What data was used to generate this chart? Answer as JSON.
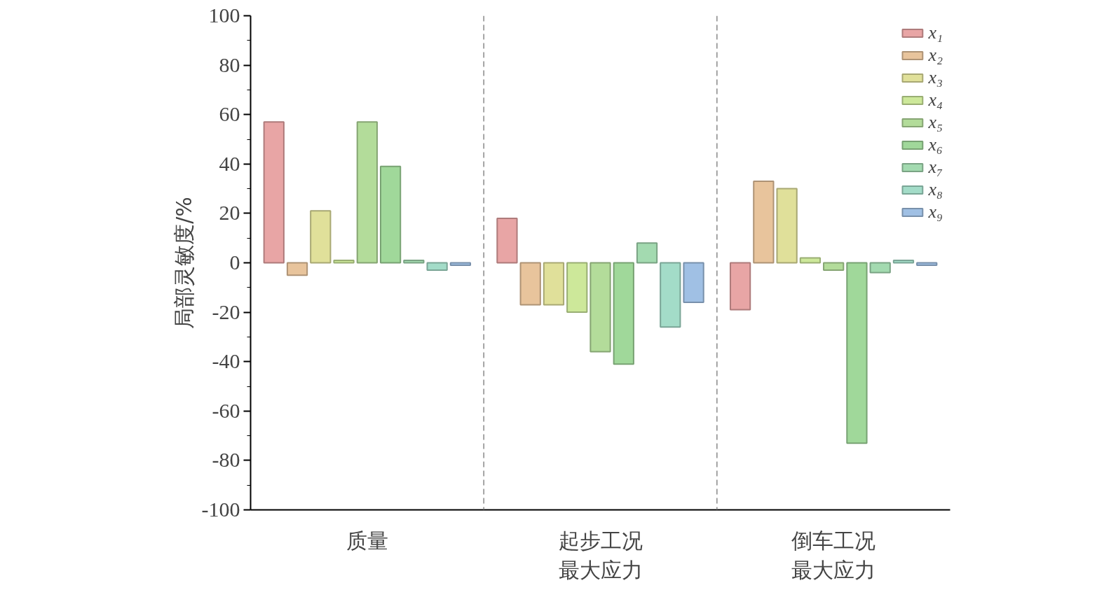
{
  "chart_data": {
    "type": "bar",
    "ylabel": "局部灵敏度/%",
    "categories": [
      "质量",
      "起步工况最大应力",
      "倒车工况最大应力"
    ],
    "series": [
      {
        "name": "x₁",
        "color": "#e8a5a5",
        "values": [
          57,
          18,
          -19
        ]
      },
      {
        "name": "x₂",
        "color": "#e8c49c",
        "values": [
          -5,
          -17,
          33
        ]
      },
      {
        "name": "x₃",
        "color": "#e0e09a",
        "values": [
          21,
          -17,
          30
        ]
      },
      {
        "name": "x₄",
        "color": "#cde89a",
        "values": [
          1,
          -20,
          2
        ]
      },
      {
        "name": "x₅",
        "color": "#b3dc9a",
        "values": [
          57,
          -36,
          -3
        ]
      },
      {
        "name": "x₆",
        "color": "#a0d89a",
        "values": [
          39,
          -41,
          -73
        ]
      },
      {
        "name": "x₇",
        "color": "#a3dab0",
        "values": [
          1,
          8,
          -4
        ]
      },
      {
        "name": "x₈",
        "color": "#a3dcc8",
        "values": [
          -3,
          -26,
          1
        ]
      },
      {
        "name": "x₉",
        "color": "#a0c0e4",
        "values": [
          -1,
          -16,
          -1
        ]
      }
    ],
    "ylim": [
      -100,
      100
    ],
    "yticks": [
      -100,
      -80,
      -60,
      -40,
      -20,
      0,
      20,
      40,
      60,
      80,
      100
    ],
    "grid": false,
    "legend": "top right"
  }
}
